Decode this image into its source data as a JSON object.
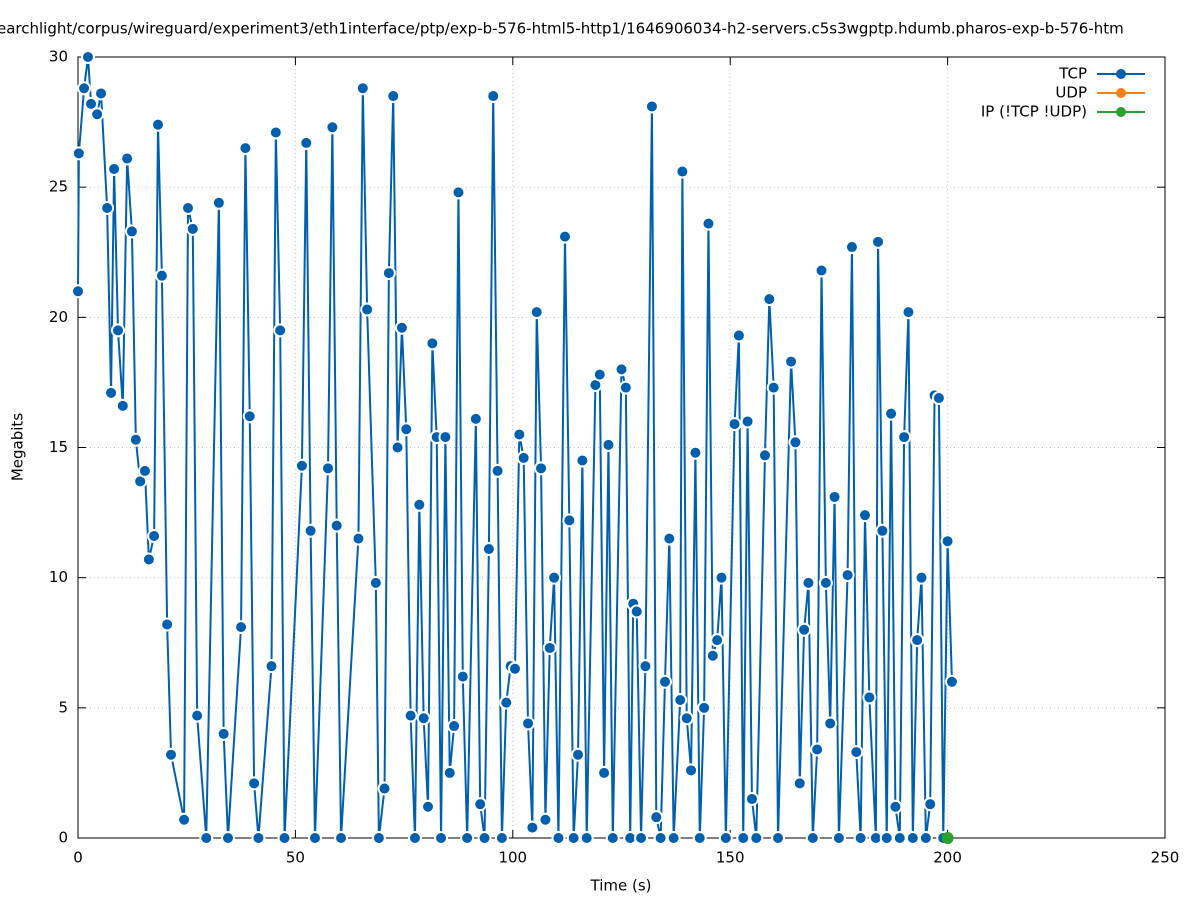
{
  "chart_data": {
    "type": "line",
    "title": "earchlight/corpus/wireguard/experiment3/eth1interface/ptp/exp-b-576-html5-http1/1646906034-h2-servers.c5s3wgptp.hdumb.pharos-exp-b-576-htm",
    "x_label": "Time (s)",
    "y_label": "Megabits",
    "xlim": [
      0,
      250
    ],
    "xticks": [
      0,
      50,
      100,
      150,
      200,
      250
    ],
    "ylim": [
      0,
      30
    ],
    "yticks": [
      0,
      5,
      10,
      15,
      20,
      25,
      30
    ],
    "grid": true,
    "legend": "top-right",
    "series": [
      {
        "name": "TCP",
        "color": "#0060ad",
        "x": [
          0,
          0.2,
          1.4,
          2.3,
          3,
          4.4,
          5.3,
          6.7,
          7.6,
          8.3,
          9.2,
          10.3,
          11.3,
          12.4,
          13.3,
          14.3,
          15.4,
          16.3,
          17.5,
          18.4,
          19.3,
          20.5,
          21.4,
          24.4,
          25.3,
          26.4,
          27.4,
          29.5,
          32.4,
          33.5,
          34.5,
          37.5,
          38.5,
          39.5,
          40.5,
          41.5,
          44.5,
          45.5,
          46.5,
          47.5,
          51.5,
          52.5,
          53.5,
          54.5,
          57.5,
          58.5,
          59.5,
          60.5,
          64.5,
          65.5,
          66.5,
          68.5,
          69.2,
          70.5,
          71.5,
          72.5,
          73.5,
          74.5,
          75.5,
          76.5,
          77.5,
          78.5,
          79.5,
          80.5,
          81.5,
          82.5,
          83.5,
          84.5,
          85.5,
          86.5,
          87.5,
          88.5,
          89.5,
          91.5,
          92.5,
          93.5,
          94.5,
          95.5,
          96.5,
          97.5,
          98.5,
          99.5,
          100.5,
          101.5,
          102.5,
          103.5,
          104.5,
          105.5,
          106.5,
          107.5,
          108.5,
          109.5,
          110.5,
          112,
          113,
          114,
          115,
          116,
          117,
          119,
          120,
          121,
          122,
          123,
          125,
          126,
          127,
          127.7,
          128.5,
          129.5,
          130.5,
          132,
          133,
          134,
          135,
          136,
          137,
          138.5,
          139,
          140,
          141,
          142,
          143,
          144,
          145,
          146,
          147,
          148,
          149,
          151,
          152,
          153,
          154,
          155,
          156,
          158,
          159,
          160,
          161,
          164,
          165,
          166,
          167,
          168,
          169,
          170,
          171,
          172,
          173,
          174,
          175,
          177,
          178,
          179,
          180,
          181,
          182,
          183.5,
          184,
          185,
          186,
          187,
          188,
          189,
          190,
          191,
          192,
          193,
          194,
          195,
          196,
          197,
          198,
          199,
          200,
          201
        ],
        "values": [
          21.0,
          26.3,
          28.8,
          30,
          28.2,
          27.8,
          28.6,
          24.2,
          17.1,
          25.7,
          19.5,
          16.6,
          26.1,
          23.3,
          15.3,
          13.7,
          14.1,
          10.7,
          11.6,
          27.4,
          21.6,
          8.2,
          3.2,
          0.7,
          24.2,
          23.4,
          4.7,
          0,
          24.4,
          4.0,
          0,
          8.1,
          26.5,
          16.2,
          2.1,
          0,
          6.6,
          27.1,
          19.5,
          0,
          14.3,
          26.7,
          11.8,
          0,
          14.2,
          27.3,
          12.0,
          0,
          11.5,
          28.8,
          20.3,
          9.8,
          0,
          1.9,
          21.7,
          28.5,
          15.0,
          19.6,
          15.7,
          4.7,
          0,
          12.8,
          4.6,
          1.2,
          19.0,
          15.4,
          0,
          15.4,
          2.5,
          4.3,
          24.8,
          6.2,
          0,
          16.1,
          1.3,
          0,
          11.1,
          28.5,
          14.1,
          0,
          5.2,
          6.6,
          6.5,
          15.5,
          14.6,
          4.4,
          0.4,
          20.2,
          14.2,
          0.7,
          7.3,
          10.0,
          0,
          23.1,
          12.2,
          0,
          3.2,
          14.5,
          0,
          17.4,
          17.8,
          2.5,
          15.1,
          0,
          18.0,
          17.3,
          0,
          9.0,
          8.7,
          0,
          6.6,
          28.1,
          0.8,
          0,
          6.0,
          11.5,
          0,
          5.3,
          25.6,
          4.6,
          2.6,
          14.8,
          0,
          5.0,
          23.6,
          7.0,
          7.6,
          10.0,
          0,
          15.9,
          19.3,
          0,
          16.0,
          1.5,
          0,
          14.7,
          20.7,
          17.3,
          0,
          18.3,
          15.2,
          2.1,
          8.0,
          9.8,
          0,
          3.4,
          21.8,
          9.8,
          4.4,
          13.1,
          0,
          10.1,
          22.7,
          3.3,
          0,
          12.4,
          5.4,
          0,
          22.9,
          11.8,
          0,
          16.3,
          1.2,
          0,
          15.4,
          20.2,
          0,
          7.6,
          10.0,
          0,
          1.3,
          17.0,
          16.9,
          0,
          11.4,
          6.0
        ]
      },
      {
        "name": "UDP",
        "color": "#ff7f0e",
        "x": [],
        "values": []
      },
      {
        "name": "IP (!TCP  !UDP)",
        "color": "#2ca02c",
        "x": [
          200
        ],
        "values": [
          0
        ]
      }
    ]
  }
}
